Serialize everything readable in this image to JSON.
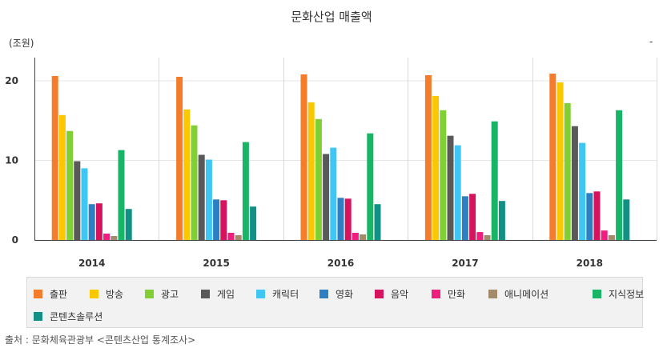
{
  "chart_data": {
    "type": "bar",
    "title": "문화산업 매출액",
    "ylabel": "(조원)",
    "corner_mark": "-",
    "categories": [
      "2014",
      "2015",
      "2016",
      "2017",
      "2018"
    ],
    "ylim": [
      0,
      23
    ],
    "yticks": [
      0,
      10,
      20
    ],
    "series": [
      {
        "name": "출판",
        "color": "#f47c2b",
        "values": [
          20.6,
          20.5,
          20.8,
          20.7,
          20.9
        ]
      },
      {
        "name": "방송",
        "color": "#f9c800",
        "values": [
          15.7,
          16.4,
          17.3,
          18.1,
          19.8
        ]
      },
      {
        "name": "광고",
        "color": "#80d035",
        "values": [
          13.7,
          14.4,
          15.2,
          16.3,
          17.2
        ]
      },
      {
        "name": "게임",
        "color": "#595959",
        "values": [
          9.9,
          10.7,
          10.8,
          13.1,
          14.3
        ]
      },
      {
        "name": "캐릭터",
        "color": "#3ec6f5",
        "values": [
          9.0,
          10.1,
          11.6,
          11.9,
          12.2
        ]
      },
      {
        "name": "영화",
        "color": "#2e7fc1",
        "values": [
          4.5,
          5.1,
          5.3,
          5.5,
          5.9
        ]
      },
      {
        "name": "음악",
        "color": "#d6145d",
        "values": [
          4.6,
          5.0,
          5.2,
          5.8,
          6.1
        ]
      },
      {
        "name": "만화",
        "color": "#ee1d7e",
        "values": [
          0.8,
          0.9,
          0.9,
          1.0,
          1.2
        ]
      },
      {
        "name": "애니메이션",
        "color": "#a28a6b",
        "values": [
          0.5,
          0.6,
          0.7,
          0.6,
          0.6
        ]
      },
      {
        "name": "지식정보",
        "color": "#19b566",
        "values": [
          11.3,
          12.3,
          13.4,
          14.9,
          16.3
        ]
      },
      {
        "name": "콘텐츠솔루션",
        "color": "#119186",
        "values": [
          3.9,
          4.2,
          4.5,
          4.9,
          5.1
        ]
      }
    ]
  },
  "source": "출처 : 문화체육관광부 <콘텐츠산업 통계조사>"
}
